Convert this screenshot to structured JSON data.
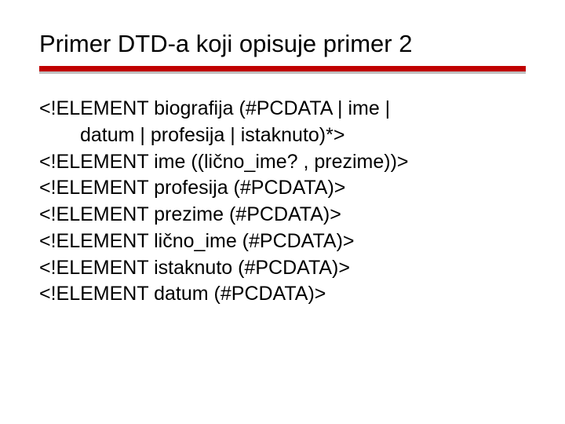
{
  "colors": {
    "background": "#ffffff",
    "title_text": "#000000",
    "body_text": "#000000",
    "rule_red": "#c00000",
    "rule_shadow": "#bfbfbf"
  },
  "typography": {
    "title_fontsize": 31,
    "body_fontsize": 25,
    "font_family": "Verdana"
  },
  "title": "Primer DTD-a koji opisuje primer 2",
  "lines": [
    "<!ELEMENT biografija (#PCDATA | ime |",
    "datum | profesija | istaknuto)*>",
    "<!ELEMENT ime ((lično_ime? , prezime))>",
    "<!ELEMENT profesija (#PCDATA)>",
    "<!ELEMENT prezime (#PCDATA)>",
    "<!ELEMENT lično_ime (#PCDATA)>",
    "<!ELEMENT istaknuto (#PCDATA)>",
    "<!ELEMENT datum (#PCDATA)>"
  ],
  "line_indents": [
    false,
    true,
    false,
    false,
    false,
    false,
    false,
    false
  ]
}
